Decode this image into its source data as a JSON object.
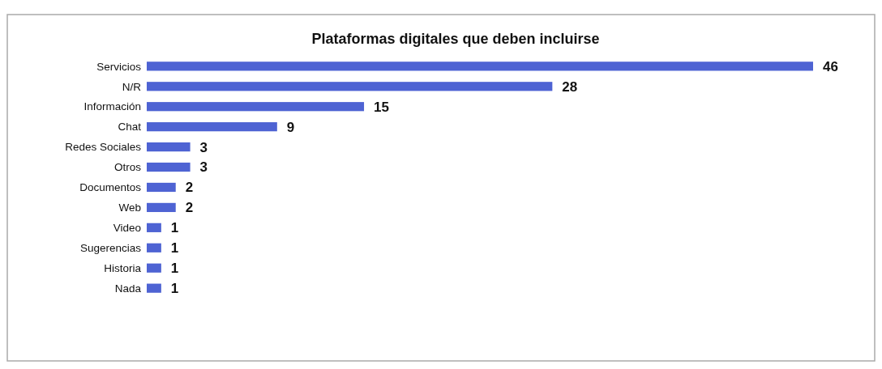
{
  "chart_data": {
    "type": "bar",
    "orientation": "horizontal",
    "title": "Plataformas digitales que deben incluirse",
    "categories": [
      "Servicios",
      "N/R",
      "Información",
      "Chat",
      "Redes Sociales",
      "Otros",
      "Documentos",
      "Web",
      "Video",
      "Sugerencias",
      "Historia",
      "Nada"
    ],
    "values": [
      46,
      28,
      15,
      9,
      3,
      3,
      2,
      2,
      1,
      1,
      1,
      1
    ],
    "color": "#4e63d3",
    "data_labels": true
  }
}
